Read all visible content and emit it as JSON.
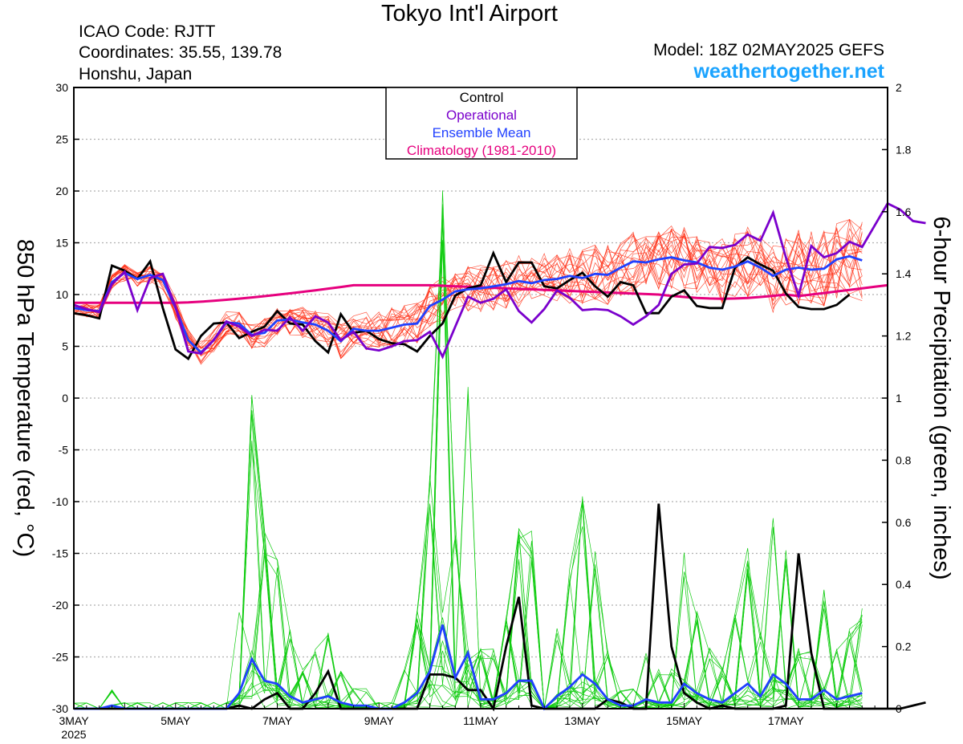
{
  "header": {
    "title": "Tokyo Int'l Airport",
    "icao": "ICAO Code: RJTT",
    "coordinates": "Coordinates: 35.55, 139.78",
    "region": "Honshu, Japan",
    "model": "Model: 18Z 02MAY2025 GEFS",
    "site": "weathertogether.net"
  },
  "colors": {
    "control": "#000000",
    "operational": "#7a00cc",
    "ensemble_mean": "#2040ff",
    "climatology": "#e6007e",
    "members_temp": "#ff2a10",
    "members_precip": "#10cc10",
    "site": "#1aa3ff"
  },
  "chart_data": {
    "type": "line",
    "x_unit": "6-hour steps starting 3MAY2025 00Z",
    "x_ticks": [
      {
        "step": 0,
        "label": "3MAY",
        "sublabel": "2025"
      },
      {
        "step": 8,
        "label": "5MAY"
      },
      {
        "step": 16,
        "label": "7MAY"
      },
      {
        "step": 24,
        "label": "9MAY"
      },
      {
        "step": 32,
        "label": "11MAY"
      },
      {
        "step": 40,
        "label": "13MAY"
      },
      {
        "step": 48,
        "label": "15MAY"
      },
      {
        "step": 56,
        "label": "17MAY"
      }
    ],
    "x_range": [
      0,
      64
    ],
    "y_left": {
      "label": "850 hPa Temperature (red, °C)",
      "range": [
        -30,
        30
      ],
      "ticks": [
        30,
        25,
        20,
        15,
        10,
        5,
        0,
        -5,
        -10,
        -15,
        -20,
        -25,
        -30
      ]
    },
    "y_right": {
      "label": "6-hour Precipitation (green, inches)",
      "range": [
        0,
        2
      ],
      "ticks": [
        2,
        1.8,
        1.6,
        1.4,
        1.2,
        1,
        0.8,
        0.6,
        0.4,
        0.2,
        0
      ]
    },
    "grid": true,
    "legend": {
      "position": "top-center",
      "entries": [
        "Control",
        "Operational",
        "Ensemble Mean",
        "Climatology (1981-2010)"
      ]
    },
    "temperature": {
      "control": [
        8.2,
        8,
        7.7,
        12.8,
        12.3,
        11.5,
        13.2,
        8.7,
        4.7,
        3.8,
        6,
        7.2,
        7.3,
        5.8,
        6.4,
        6.9,
        8.4,
        7.2,
        7.1,
        5.5,
        4.4,
        8.1,
        6.3,
        6.5,
        5.7,
        5.3,
        5.2,
        4.5,
        6,
        7.2,
        9.9,
        10.6,
        10.9,
        14,
        11.2,
        13.1,
        13.1,
        10.8,
        10.6,
        11.4,
        12.1,
        10.8,
        9.8,
        11.2,
        10.9,
        8.2,
        8.2,
        9.8,
        10.4,
        8.9,
        8.7,
        8.7,
        12.6,
        13.6,
        12.9,
        12.3,
        10.1,
        8.8,
        8.6,
        8.6,
        9,
        10
      ],
      "operational": [
        9,
        8.6,
        8.3,
        11,
        12.2,
        8.5,
        11.6,
        12,
        8.8,
        4.5,
        4.3,
        5.6,
        7.4,
        6.9,
        6,
        6.6,
        6.5,
        7.8,
        6.5,
        7.9,
        7.3,
        5.6,
        6.4,
        4.8,
        4.6,
        5,
        5.5,
        5.6,
        6.4,
        4,
        6.9,
        9.8,
        9.2,
        9.6,
        10.5,
        8.4,
        7.3,
        8.6,
        10.4,
        9.7,
        8.5,
        8.6,
        8.5,
        7.9,
        7.1,
        7.9,
        9,
        12,
        12.9,
        13,
        14.6,
        14.5,
        14.8,
        15.8,
        15.2,
        17.9,
        13.6,
        9.9,
        14.7,
        13.6,
        14,
        15.1,
        14.6,
        16.7,
        18.8,
        18.2,
        17.1,
        16.9
      ],
      "ensemble_mean": [
        8.7,
        8.5,
        8.4,
        11.2,
        12.1,
        11.5,
        11.9,
        11.4,
        8.7,
        5.6,
        4.4,
        5.6,
        7.3,
        7.2,
        6.1,
        6.3,
        7.5,
        7.6,
        7.3,
        7.1,
        6.5,
        5.5,
        6.7,
        6.5,
        6.5,
        6.8,
        7.1,
        7.2,
        8.9,
        9.5,
        10.3,
        10.5,
        10.6,
        10.8,
        11,
        11.3,
        11.1,
        11.4,
        11.5,
        11.8,
        11.6,
        12,
        11.9,
        12.6,
        13.2,
        13.1,
        13.4,
        13.6,
        13.3,
        13.1,
        12.6,
        12.4,
        12.7,
        13.2,
        12.6,
        11.8,
        12.4,
        12.6,
        12.4,
        12.5,
        13.4,
        13.7,
        13.3
      ]
    },
    "precipitation": {
      "control": [
        0,
        0,
        0,
        0,
        0,
        0,
        0,
        0,
        0,
        0,
        0,
        0,
        0,
        0.01,
        0,
        0.03,
        0.05,
        0,
        0,
        0.05,
        0.12,
        0,
        0,
        0,
        0,
        0,
        0,
        0,
        0.11,
        0.11,
        0.1,
        0.06,
        0.06,
        0,
        0.2,
        0.36,
        0.01,
        0,
        0,
        0,
        0,
        0,
        0.03,
        0.02,
        0,
        0,
        0.66,
        0.2,
        0.05,
        0.02,
        0,
        0.01,
        0,
        0,
        0,
        0,
        0.01,
        0.5,
        0.18,
        0,
        0,
        0,
        0,
        0,
        0,
        0,
        0.01,
        0.02
      ],
      "ensemble_mean": [
        0,
        0,
        0,
        0.01,
        0,
        0,
        0,
        0,
        0,
        0,
        0,
        0,
        0,
        0.05,
        0.16,
        0.09,
        0.08,
        0.04,
        0.02,
        0.03,
        0.04,
        0.02,
        0.01,
        0.01,
        0,
        0,
        0.02,
        0.05,
        0.12,
        0.27,
        0.1,
        0.18,
        0.03,
        0.03,
        0.05,
        0.09,
        0.09,
        0,
        0.04,
        0.07,
        0.11,
        0.08,
        0.03,
        0.01,
        0.01,
        0.03,
        0.02,
        0.02,
        0.08,
        0.05,
        0.03,
        0.02,
        0.05,
        0.08,
        0.04,
        0.11,
        0.08,
        0.03,
        0.03,
        0.06,
        0.03,
        0.04,
        0.05
      ]
    }
  }
}
